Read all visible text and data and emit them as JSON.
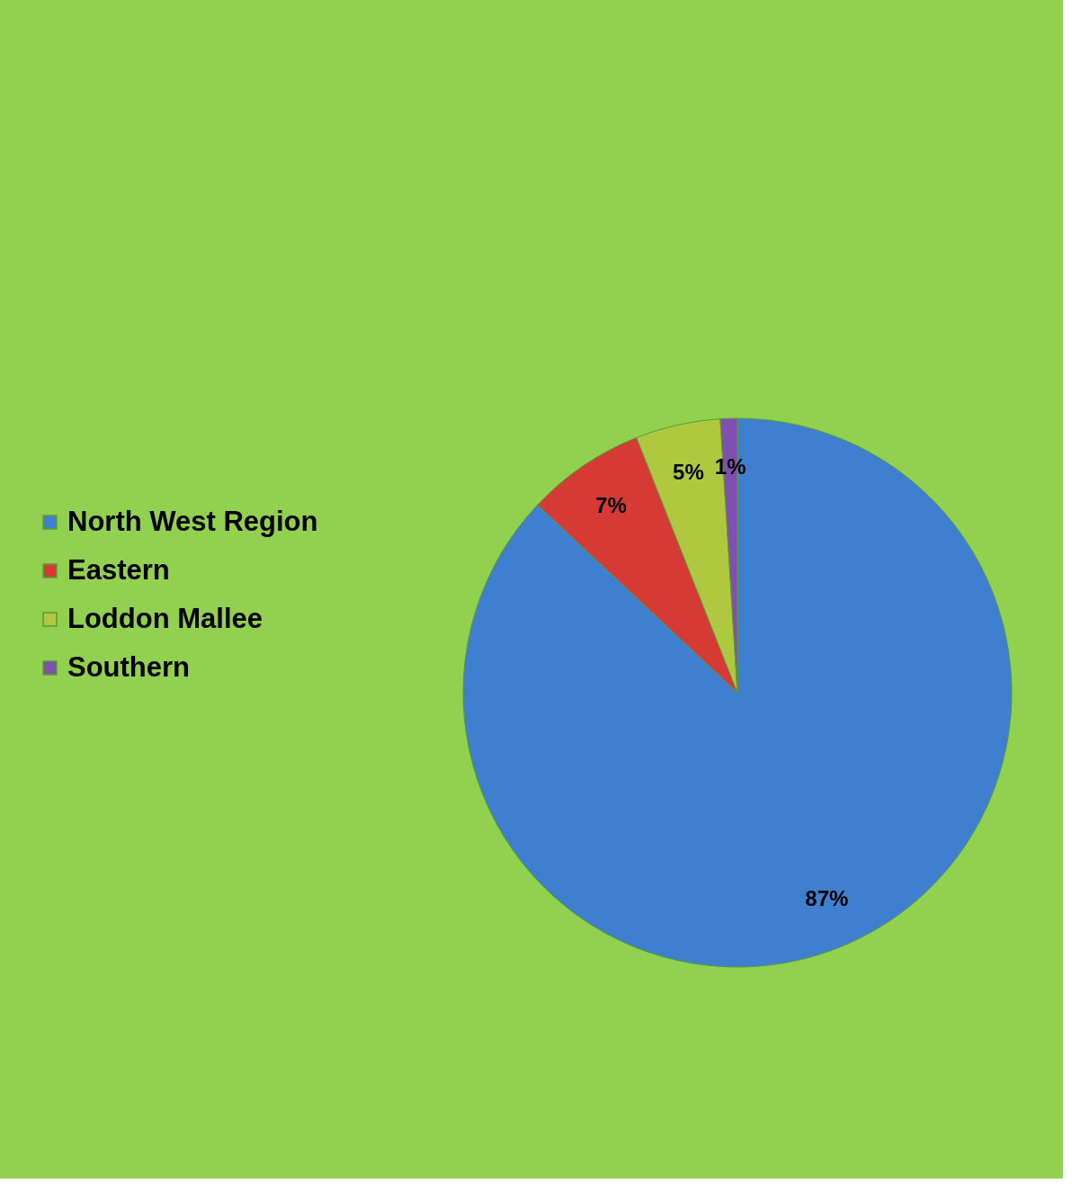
{
  "chart_data": {
    "type": "pie",
    "categories": [
      "North West Region",
      "Eastern",
      "Loddon Mallee",
      "Southern"
    ],
    "values": [
      87,
      7,
      5,
      1
    ],
    "colors": [
      "#3f7fd0",
      "#d53a35",
      "#b0c840",
      "#8050b0"
    ],
    "value_labels": [
      "87%",
      "7%",
      "5%",
      "1%"
    ],
    "legend": "left"
  }
}
